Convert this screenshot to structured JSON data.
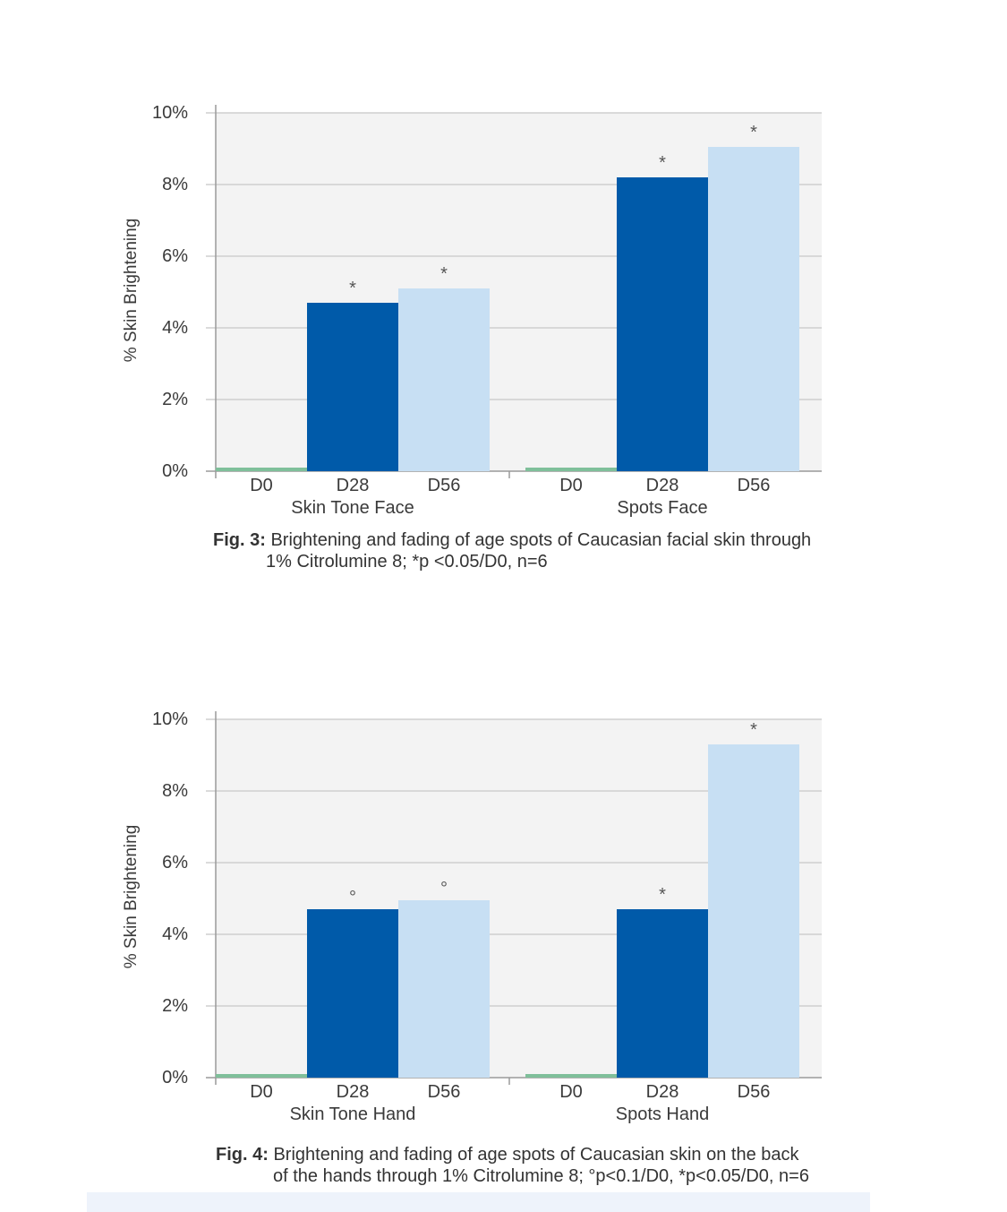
{
  "colors": {
    "d0": "#7fbf9a",
    "d28": "#005aa9",
    "d56": "#c7dff3",
    "plot_bg": "#f3f3f3",
    "grid": "#cfcfcf",
    "text": "#3a3a3a"
  },
  "chart_data": [
    {
      "type": "bar",
      "title": "",
      "ylabel": "% Skin Brightening",
      "xlabel": "",
      "ylim": [
        0,
        10
      ],
      "ytick_values": [
        0,
        2,
        4,
        6,
        8,
        10
      ],
      "yticks": [
        "0%",
        "2%",
        "4%",
        "6%",
        "8%",
        "10%"
      ],
      "grid": true,
      "groups": [
        {
          "name": "Skin Tone Face",
          "categories": [
            "D0",
            "D28",
            "D56"
          ],
          "values": [
            0.05,
            4.7,
            5.1
          ],
          "significance": [
            "",
            "*",
            "*"
          ]
        },
        {
          "name": "Spots Face",
          "categories": [
            "D0",
            "D28",
            "D56"
          ],
          "values": [
            0.05,
            8.2,
            9.05
          ],
          "significance": [
            "",
            "*",
            "*"
          ]
        }
      ],
      "caption": {
        "label": "Fig. 3:",
        "line1": "Brightening and fading of age spots of Caucasian facial skin through",
        "line2": "1% Citrolumine 8; *p <0.05/D0, n=6"
      }
    },
    {
      "type": "bar",
      "title": "",
      "ylabel": "% Skin Brightening",
      "xlabel": "",
      "ylim": [
        0,
        10
      ],
      "ytick_values": [
        0,
        2,
        4,
        6,
        8,
        10
      ],
      "yticks": [
        "0%",
        "2%",
        "4%",
        "6%",
        "8%",
        "10%"
      ],
      "grid": true,
      "groups": [
        {
          "name": "Skin Tone Hand",
          "categories": [
            "D0",
            "D28",
            "D56"
          ],
          "values": [
            0.05,
            4.7,
            4.95
          ],
          "significance": [
            "",
            "°",
            "°"
          ]
        },
        {
          "name": "Spots Hand",
          "categories": [
            "D0",
            "D28",
            "D56"
          ],
          "values": [
            0.05,
            4.7,
            9.3
          ],
          "significance": [
            "",
            "*",
            "*"
          ]
        }
      ],
      "caption": {
        "label": "Fig. 4:",
        "line1": "Brightening and fading of age spots of Caucasian skin on the back",
        "line2": "of the hands through 1% Citrolumine 8; °p<0.1/D0, *p<0.05/D0, n=6"
      }
    }
  ]
}
